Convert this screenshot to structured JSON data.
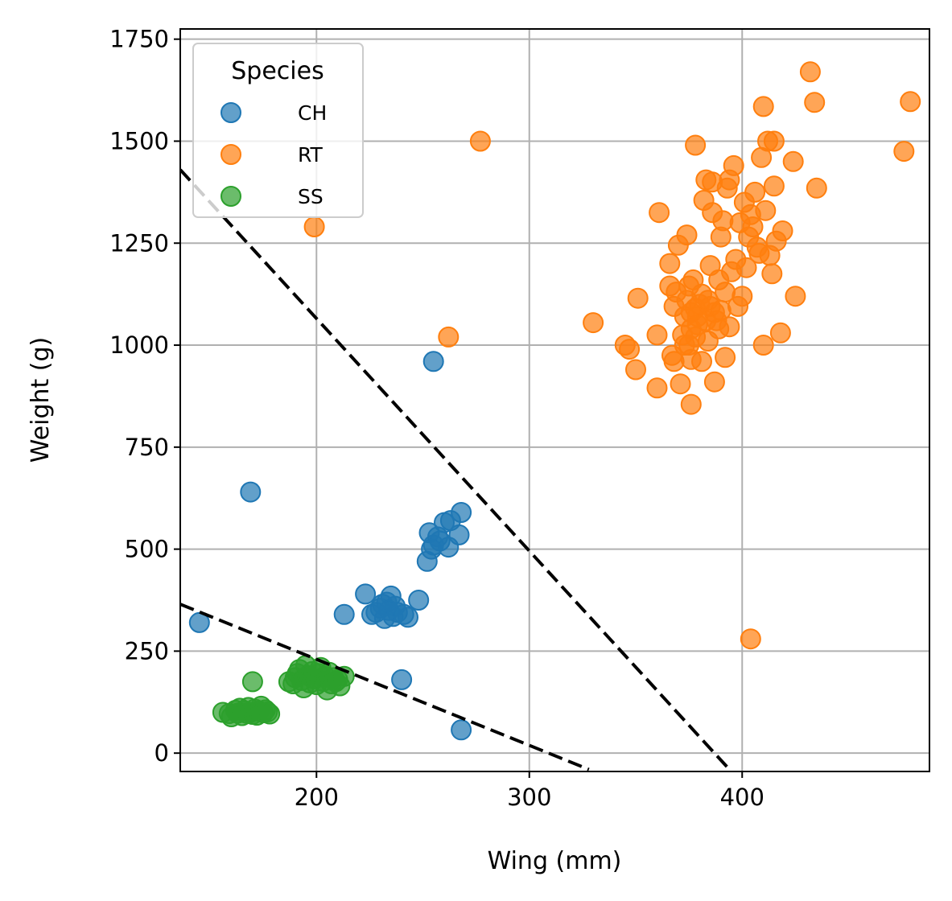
{
  "chart_data": {
    "type": "scatter",
    "title": "",
    "xlabel": "Wing (mm)",
    "ylabel": "Weight (g)",
    "xlim": [
      136,
      488
    ],
    "ylim": [
      -45,
      1775
    ],
    "xticks": [
      200,
      300,
      400
    ],
    "yticks": [
      0,
      250,
      500,
      750,
      1000,
      1250,
      1500,
      1750
    ],
    "grid": true,
    "legend": {
      "title": "Species",
      "position": "top-left"
    },
    "series": [
      {
        "name": "CH",
        "color": "#1f77b4",
        "points": [
          [
            145,
            320
          ],
          [
            169,
            640
          ],
          [
            255,
            960
          ],
          [
            268,
            57
          ],
          [
            240,
            180
          ],
          [
            213,
            340
          ],
          [
            223,
            390
          ],
          [
            226,
            340
          ],
          [
            230,
            355
          ],
          [
            232,
            330
          ],
          [
            233,
            370
          ],
          [
            235,
            385
          ],
          [
            237,
            360
          ],
          [
            238,
            345
          ],
          [
            236,
            335
          ],
          [
            243,
            333
          ],
          [
            248,
            375
          ],
          [
            231,
            365
          ],
          [
            234,
            350
          ],
          [
            228,
            345
          ],
          [
            252,
            470
          ],
          [
            253,
            540
          ],
          [
            255,
            510
          ],
          [
            257,
            530
          ],
          [
            260,
            565
          ],
          [
            262,
            505
          ],
          [
            263,
            570
          ],
          [
            267,
            535
          ],
          [
            268,
            590
          ],
          [
            258,
            520
          ],
          [
            254,
            500
          ],
          [
            241,
            340
          ]
        ]
      },
      {
        "name": "RT",
        "color": "#ff7f0e",
        "points": [
          [
            199,
            1290
          ],
          [
            262,
            1020
          ],
          [
            277,
            1500
          ],
          [
            404,
            280
          ],
          [
            330,
            1055
          ],
          [
            345,
            1000
          ],
          [
            347,
            990
          ],
          [
            350,
            940
          ],
          [
            351,
            1115
          ],
          [
            360,
            895
          ],
          [
            360,
            1025
          ],
          [
            361,
            1325
          ],
          [
            366,
            1200
          ],
          [
            366,
            1145
          ],
          [
            367,
            975
          ],
          [
            368,
            1095
          ],
          [
            368,
            960
          ],
          [
            369,
            1130
          ],
          [
            370,
            1245
          ],
          [
            371,
            905
          ],
          [
            372,
            1025
          ],
          [
            373,
            1070
          ],
          [
            373,
            1000
          ],
          [
            374,
            1270
          ],
          [
            374,
            1110
          ],
          [
            375,
            1145
          ],
          [
            375,
            1000
          ],
          [
            376,
            855
          ],
          [
            376,
            1080
          ],
          [
            376,
            965
          ],
          [
            377,
            1160
          ],
          [
            378,
            1490
          ],
          [
            378,
            1020
          ],
          [
            379,
            1050
          ],
          [
            380,
            1100
          ],
          [
            381,
            1125
          ],
          [
            381,
            960
          ],
          [
            382,
            1355
          ],
          [
            383,
            1405
          ],
          [
            384,
            1010
          ],
          [
            385,
            1195
          ],
          [
            385,
            1095
          ],
          [
            386,
            1400
          ],
          [
            386,
            1325
          ],
          [
            387,
            910
          ],
          [
            388,
            1060
          ],
          [
            389,
            1160
          ],
          [
            390,
            1265
          ],
          [
            390,
            1085
          ],
          [
            391,
            1305
          ],
          [
            392,
            1130
          ],
          [
            392,
            970
          ],
          [
            393,
            1385
          ],
          [
            394,
            1405
          ],
          [
            394,
            1045
          ],
          [
            395,
            1180
          ],
          [
            396,
            1440
          ],
          [
            397,
            1210
          ],
          [
            398,
            1095
          ],
          [
            399,
            1300
          ],
          [
            400,
            1120
          ],
          [
            401,
            1350
          ],
          [
            402,
            1190
          ],
          [
            403,
            1265
          ],
          [
            404,
            1320
          ],
          [
            405,
            1290
          ],
          [
            406,
            1375
          ],
          [
            407,
            1240
          ],
          [
            408,
            1225
          ],
          [
            409,
            1460
          ],
          [
            410,
            1585
          ],
          [
            410,
            1000
          ],
          [
            411,
            1330
          ],
          [
            412,
            1500
          ],
          [
            413,
            1220
          ],
          [
            414,
            1175
          ],
          [
            415,
            1390
          ],
          [
            415,
            1500
          ],
          [
            416,
            1255
          ],
          [
            418,
            1030
          ],
          [
            419,
            1280
          ],
          [
            424,
            1450
          ],
          [
            425,
            1120
          ],
          [
            432,
            1670
          ],
          [
            434,
            1595
          ],
          [
            435,
            1385
          ],
          [
            476,
            1475
          ],
          [
            479,
            1597
          ],
          [
            383,
            1060
          ],
          [
            379,
            1070
          ],
          [
            387,
            1080
          ],
          [
            384,
            1110
          ],
          [
            378,
            1090
          ],
          [
            376,
            1040
          ],
          [
            389,
            1040
          ]
        ]
      },
      {
        "name": "SS",
        "color": "#2ca02c",
        "points": [
          [
            156,
            100
          ],
          [
            159,
            97
          ],
          [
            160,
            89
          ],
          [
            162,
            105
          ],
          [
            163,
            98
          ],
          [
            164,
            110
          ],
          [
            165,
            92
          ],
          [
            166,
            104
          ],
          [
            167,
            98
          ],
          [
            168,
            112
          ],
          [
            169,
            100
          ],
          [
            170,
            95
          ],
          [
            170,
            175
          ],
          [
            171,
            108
          ],
          [
            172,
            93
          ],
          [
            173,
            103
          ],
          [
            174,
            115
          ],
          [
            175,
            99
          ],
          [
            176,
            106
          ],
          [
            177,
            101
          ],
          [
            178,
            96
          ],
          [
            187,
            175
          ],
          [
            189,
            170
          ],
          [
            190,
            185
          ],
          [
            191,
            195
          ],
          [
            192,
            205
          ],
          [
            193,
            178
          ],
          [
            194,
            160
          ],
          [
            195,
            215
          ],
          [
            196,
            190
          ],
          [
            197,
            172
          ],
          [
            198,
            200
          ],
          [
            199,
            182
          ],
          [
            200,
            168
          ],
          [
            201,
            195
          ],
          [
            202,
            210
          ],
          [
            203,
            176
          ],
          [
            204,
            188
          ],
          [
            205,
            155
          ],
          [
            206,
            198
          ],
          [
            207,
            170
          ],
          [
            208,
            185
          ],
          [
            209,
            175
          ],
          [
            210,
            180
          ],
          [
            211,
            165
          ],
          [
            213,
            188
          ]
        ]
      }
    ],
    "reference_lines": [
      {
        "from": [
          136,
          1430
        ],
        "to": [
          394,
          -40
        ],
        "style": "dashed",
        "color": "#000000"
      },
      {
        "from": [
          136,
          365
        ],
        "to": [
          328,
          -40
        ],
        "style": "dashed",
        "color": "#000000"
      }
    ]
  }
}
